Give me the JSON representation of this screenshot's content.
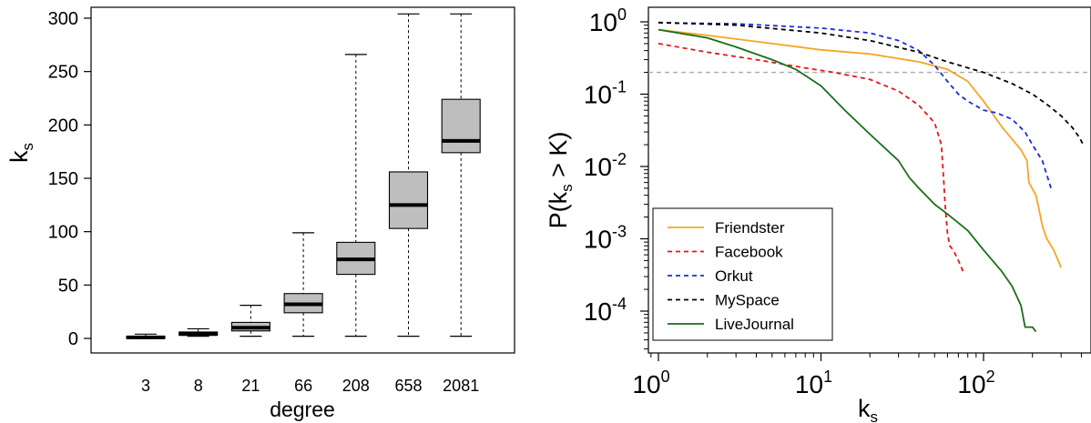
{
  "chart_data": [
    {
      "type": "boxplot",
      "xlabel": "degree",
      "ylabel": "k",
      "ylabel_sub": "s",
      "ylim": [
        0,
        300
      ],
      "yticks": [
        0,
        50,
        100,
        150,
        200,
        250,
        300
      ],
      "categories": [
        "3",
        "8",
        "21",
        "66",
        "208",
        "658",
        "2081"
      ],
      "boxes": [
        {
          "min": 0,
          "q1": 0,
          "median": 1,
          "q3": 2,
          "max": 4
        },
        {
          "min": 2,
          "q1": 3,
          "median": 4,
          "q3": 6,
          "max": 9
        },
        {
          "min": 2,
          "q1": 7,
          "median": 10,
          "q3": 15,
          "max": 31
        },
        {
          "min": 2,
          "q1": 24,
          "median": 32,
          "q3": 42,
          "max": 99
        },
        {
          "min": 2,
          "q1": 60,
          "median": 74,
          "q3": 90,
          "max": 266
        },
        {
          "min": 2,
          "q1": 103,
          "median": 125,
          "q3": 156,
          "max": 304
        },
        {
          "min": 2,
          "q1": 174,
          "median": 185,
          "q3": 224,
          "max": 304
        }
      ],
      "box_color": "#bebebe"
    },
    {
      "type": "line",
      "scale": "log-log",
      "xlabel": "k",
      "xlabel_sub": "s",
      "ylabel_prefix": "P(k",
      "ylabel_sub": "s",
      "ylabel_suffix": " > K)",
      "xlim": [
        0.9,
        420
      ],
      "ylim": [
        3e-05,
        1.3
      ],
      "xticks": [
        {
          "value": 1,
          "base": "10",
          "exp": "0"
        },
        {
          "value": 10,
          "base": "10",
          "exp": "1"
        },
        {
          "value": 100,
          "base": "10",
          "exp": "2"
        }
      ],
      "yticks": [
        {
          "value": 1,
          "base": "10",
          "exp": "0"
        },
        {
          "value": 0.1,
          "base": "10",
          "exp": "-1"
        },
        {
          "value": 0.01,
          "base": "10",
          "exp": "-2"
        },
        {
          "value": 0.001,
          "base": "10",
          "exp": "-3"
        },
        {
          "value": 0.0001,
          "base": "10",
          "exp": "-4"
        }
      ],
      "reference_line_y": 0.2,
      "legend_position": "bottom-left",
      "series": [
        {
          "name": "Friendster",
          "color": "#f5a623",
          "dash": "solid",
          "points": [
            [
              1,
              0.78
            ],
            [
              2,
              0.65
            ],
            [
              5,
              0.5
            ],
            [
              10,
              0.41
            ],
            [
              20,
              0.36
            ],
            [
              40,
              0.28
            ],
            [
              60,
              0.22
            ],
            [
              80,
              0.15
            ],
            [
              100,
              0.08
            ],
            [
              130,
              0.035
            ],
            [
              170,
              0.017
            ],
            [
              185,
              0.012
            ],
            [
              190,
              0.006
            ],
            [
              210,
              0.004
            ],
            [
              220,
              0.0025
            ],
            [
              230,
              0.0015
            ],
            [
              245,
              0.001
            ],
            [
              270,
              0.0007
            ],
            [
              300,
              0.0004
            ]
          ]
        },
        {
          "name": "Facebook",
          "color": "#e8141c",
          "dash": "dashed",
          "points": [
            [
              1,
              0.5
            ],
            [
              2,
              0.38
            ],
            [
              4,
              0.3
            ],
            [
              8,
              0.23
            ],
            [
              12,
              0.2
            ],
            [
              20,
              0.16
            ],
            [
              30,
              0.11
            ],
            [
              40,
              0.07
            ],
            [
              50,
              0.04
            ],
            [
              55,
              0.02
            ],
            [
              57,
              0.006
            ],
            [
              58,
              0.003
            ],
            [
              60,
              0.0012
            ],
            [
              62,
              0.0008
            ],
            [
              65,
              0.0007
            ],
            [
              70,
              0.0005
            ],
            [
              75,
              0.00035
            ]
          ]
        },
        {
          "name": "Orkut",
          "color": "#1f2ad6",
          "dash": "dashed",
          "points": [
            [
              1,
              0.97
            ],
            [
              3,
              0.94
            ],
            [
              10,
              0.82
            ],
            [
              20,
              0.7
            ],
            [
              30,
              0.55
            ],
            [
              40,
              0.4
            ],
            [
              50,
              0.25
            ],
            [
              60,
              0.15
            ],
            [
              70,
              0.1
            ],
            [
              80,
              0.08
            ],
            [
              100,
              0.06
            ],
            [
              120,
              0.055
            ],
            [
              150,
              0.045
            ],
            [
              180,
              0.03
            ],
            [
              200,
              0.02
            ],
            [
              230,
              0.012
            ],
            [
              260,
              0.005
            ]
          ]
        },
        {
          "name": "MySpace",
          "color": "#000000",
          "dash": "dashed",
          "points": [
            [
              1,
              0.98
            ],
            [
              3,
              0.9
            ],
            [
              10,
              0.7
            ],
            [
              20,
              0.55
            ],
            [
              40,
              0.38
            ],
            [
              60,
              0.28
            ],
            [
              100,
              0.2
            ],
            [
              150,
              0.14
            ],
            [
              200,
              0.1
            ],
            [
              250,
              0.07
            ],
            [
              300,
              0.05
            ],
            [
              350,
              0.035
            ],
            [
              390,
              0.025
            ],
            [
              410,
              0.02
            ]
          ]
        },
        {
          "name": "LiveJournal",
          "color": "#1a6e1a",
          "dash": "solid",
          "points": [
            [
              1,
              0.78
            ],
            [
              2,
              0.6
            ],
            [
              3,
              0.45
            ],
            [
              5,
              0.3
            ],
            [
              7,
              0.22
            ],
            [
              10,
              0.13
            ],
            [
              14,
              0.06
            ],
            [
              20,
              0.028
            ],
            [
              30,
              0.012
            ],
            [
              35,
              0.007
            ],
            [
              40,
              0.005
            ],
            [
              50,
              0.003
            ],
            [
              60,
              0.0022
            ],
            [
              80,
              0.0013
            ],
            [
              100,
              0.0007
            ],
            [
              130,
              0.00035
            ],
            [
              150,
              0.00022
            ],
            [
              170,
              0.00012
            ],
            [
              180,
              6e-05
            ],
            [
              200,
              6e-05
            ],
            [
              210,
              5.2e-05
            ]
          ]
        }
      ]
    }
  ]
}
